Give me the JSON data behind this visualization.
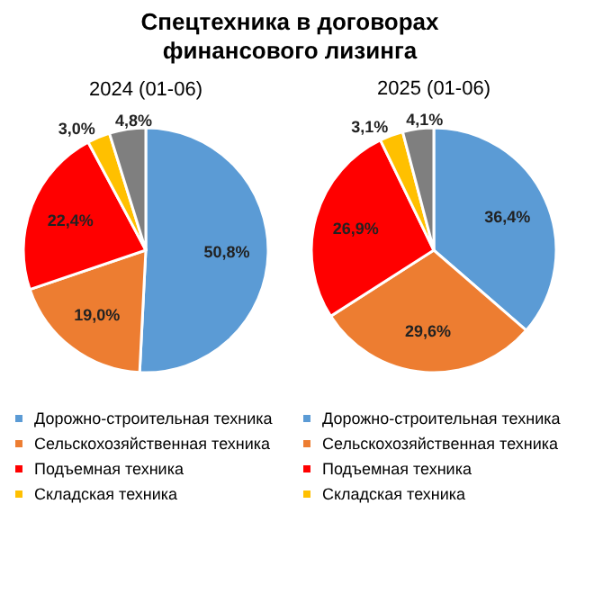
{
  "chart_data": [
    {
      "type": "pie",
      "title": "Спецтехника в договорах финансового лизинга",
      "subtitle": "2024 (01-06)",
      "categories": [
        "Дорожно-строительная техника",
        "Сельскохозяйственная техника",
        "Подъемная техника",
        "Складская техника",
        null
      ],
      "values": [
        50.8,
        19.0,
        22.4,
        3.0,
        4.8
      ],
      "colors": [
        "#5b9bd5",
        "#ed7d31",
        "#ff0000",
        "#ffc000",
        "#7f7f7f"
      ],
      "value_labels": [
        "50,8%",
        "19,0%",
        "22,4%",
        "3,0%",
        "4,8%"
      ],
      "legend": "bottom"
    },
    {
      "type": "pie",
      "subtitle": "2025 (01-06)",
      "categories": [
        "Дорожно-строительная техника",
        "Сельскохозяйственная техника",
        "Подъемная техника",
        "Складская техника",
        null
      ],
      "values": [
        36.4,
        29.6,
        26.9,
        3.1,
        4.1
      ],
      "colors": [
        "#5b9bd5",
        "#ed7d31",
        "#ff0000",
        "#ffc000",
        "#7f7f7f"
      ],
      "value_labels": [
        "36,4%",
        "29,6%",
        "26,9%",
        "3,1%",
        "4,1%"
      ],
      "legend": "bottom"
    }
  ]
}
